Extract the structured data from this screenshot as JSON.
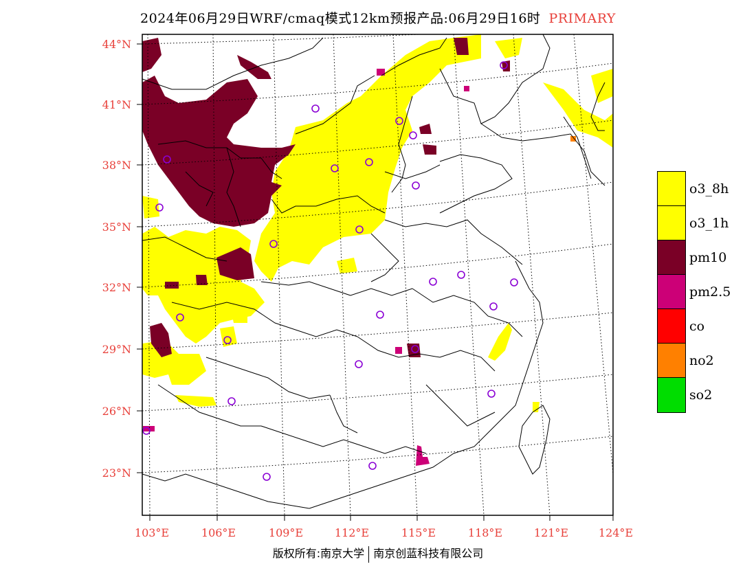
{
  "title": {
    "main": "2024年06月29日WRF/cmaq模式12km预报产品:06月29日16时",
    "tag": "PRIMARY"
  },
  "lat_labels": [
    "44°N",
    "41°N",
    "38°N",
    "35°N",
    "32°N",
    "29°N",
    "26°N",
    "23°N"
  ],
  "lon_labels": [
    "103°E",
    "106°E",
    "109°E",
    "112°E",
    "115°E",
    "118°E",
    "121°E",
    "124°E"
  ],
  "legend": [
    {
      "label": "o3_8h",
      "color": "#ffff00"
    },
    {
      "label": "o3_1h",
      "color": "#ffff00"
    },
    {
      "label": "pm10",
      "color": "#7a0026"
    },
    {
      "label": "pm2.5",
      "color": "#cc0077"
    },
    {
      "label": "co",
      "color": "#ff0000"
    },
    {
      "label": "no2",
      "color": "#ff8000"
    },
    {
      "label": "so2",
      "color": "#00dd00"
    }
  ],
  "credit": {
    "left": "版权所有:南京大学",
    "right": "南京创蓝科技有限公司"
  },
  "colors": {
    "accent_red": "#e8403a",
    "station_marker": "#8a00d4"
  }
}
